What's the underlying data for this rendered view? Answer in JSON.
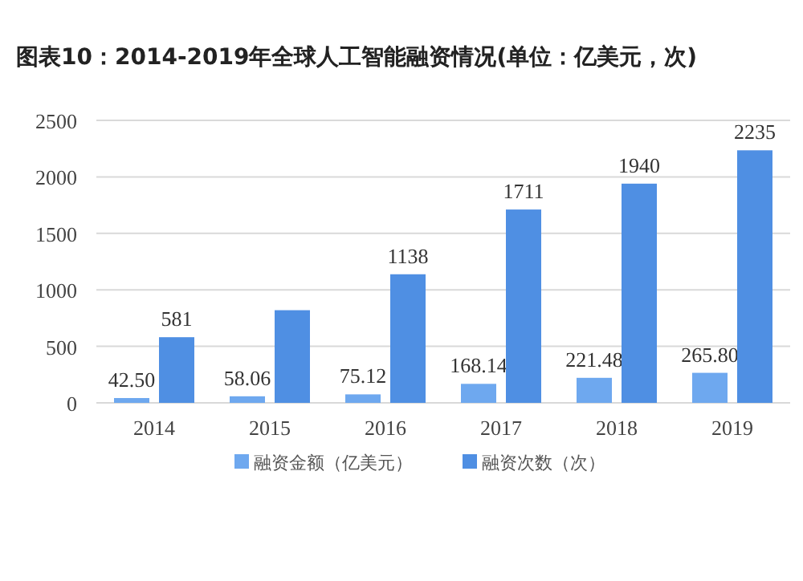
{
  "chart_data": {
    "type": "bar",
    "title": "图表10：2014-2019年全球人工智能融资情况(单位：亿美元，次)",
    "categories": [
      "2014",
      "2015",
      "2016",
      "2017",
      "2018",
      "2019"
    ],
    "series": [
      {
        "name": "融资金额（亿美元）",
        "color": "#6ea8ef",
        "values": [
          42.5,
          58.06,
          75.12,
          168.14,
          221.48,
          265.8
        ],
        "value_labels": [
          "42.50",
          "58.06",
          "75.12",
          "168.14",
          "221.48",
          "265.80"
        ]
      },
      {
        "name": "融资次数（次）",
        "color": "#4f8fe3",
        "values": [
          581,
          820,
          1138,
          1711,
          1940,
          2235
        ],
        "value_labels": [
          "581",
          null,
          "1138",
          "1711",
          "1940",
          "2235"
        ]
      }
    ],
    "ylim": [
      0,
      2500
    ],
    "yticks": [
      0,
      500,
      1000,
      1500,
      2000,
      2500
    ],
    "grid": "y",
    "legend": "bottom"
  }
}
